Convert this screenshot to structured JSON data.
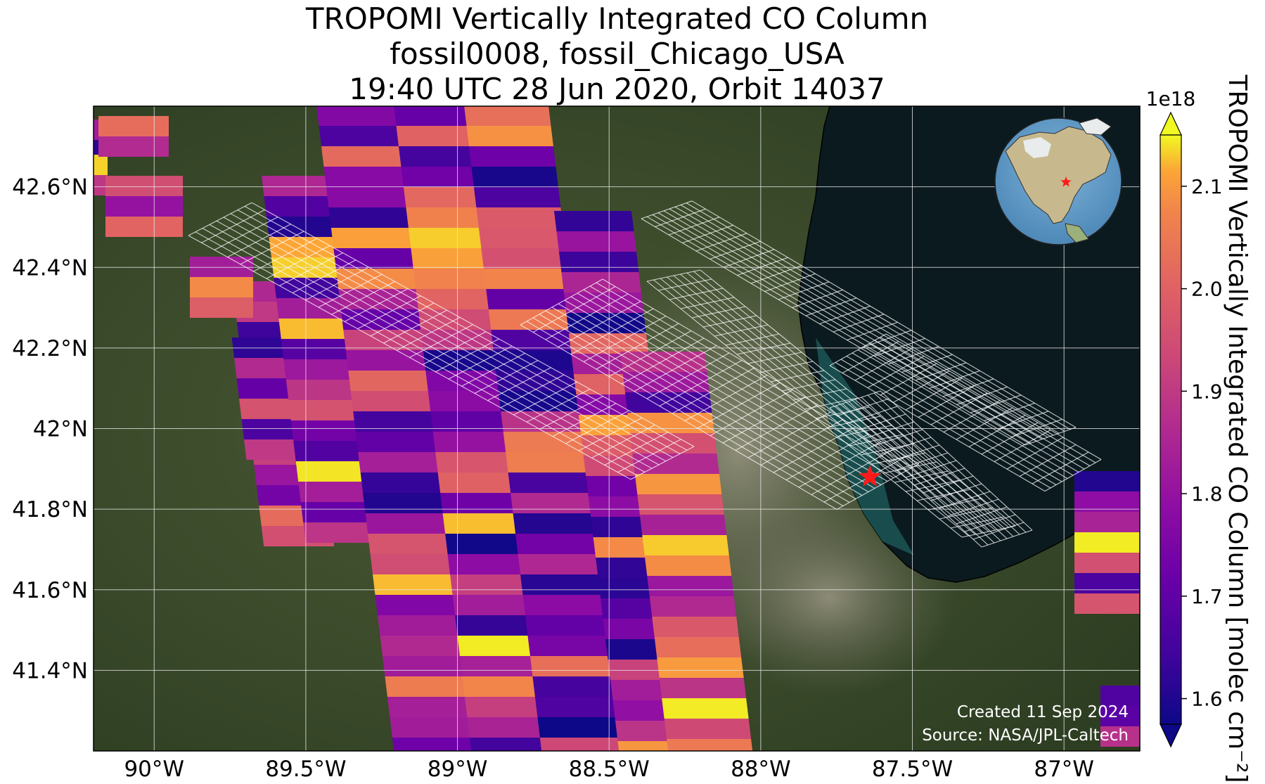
{
  "title": {
    "line1": "TROPOMI Vertically Integrated CO Column",
    "line2": "fossil0008, fossil_Chicago_USA",
    "line3": "19:40 UTC 28 Jun 2020, Orbit 14037"
  },
  "colorbar": {
    "label": "TROPOMI Vertically Integrated CO Column [molec cm⁻²]",
    "exponent": "1e18",
    "ticks": [
      "1.6",
      "1.7",
      "1.8",
      "1.9",
      "2.0",
      "2.1"
    ],
    "range": [
      1.575,
      2.15
    ],
    "colormap": "plasma"
  },
  "axes": {
    "lon_range": [
      -90.2,
      -86.75
    ],
    "lat_range": [
      41.2,
      42.8
    ],
    "lat_labels": [
      "42.6°N",
      "42.4°N",
      "42.2°N",
      "42°N",
      "41.8°N",
      "41.6°N",
      "41.4°N"
    ],
    "lon_labels": [
      "90°W",
      "89.5°W",
      "89°W",
      "88.5°W",
      "88°W",
      "87.5°W",
      "87°W"
    ],
    "grid": true
  },
  "target": {
    "name": "fossil_Chicago_USA",
    "lon": -87.64,
    "lat": 41.88,
    "marker": "red-star"
  },
  "inset": {
    "type": "globe",
    "marker": "red-star"
  },
  "credits": {
    "created": "Created 11 Sep 2024",
    "source": "Source: NASA/JPL-Caltech"
  },
  "colors": {
    "lake": "#0b1a1f",
    "land": "#3a4a2a",
    "grid": "#e6e6e6",
    "star": "#ff1a1a"
  }
}
